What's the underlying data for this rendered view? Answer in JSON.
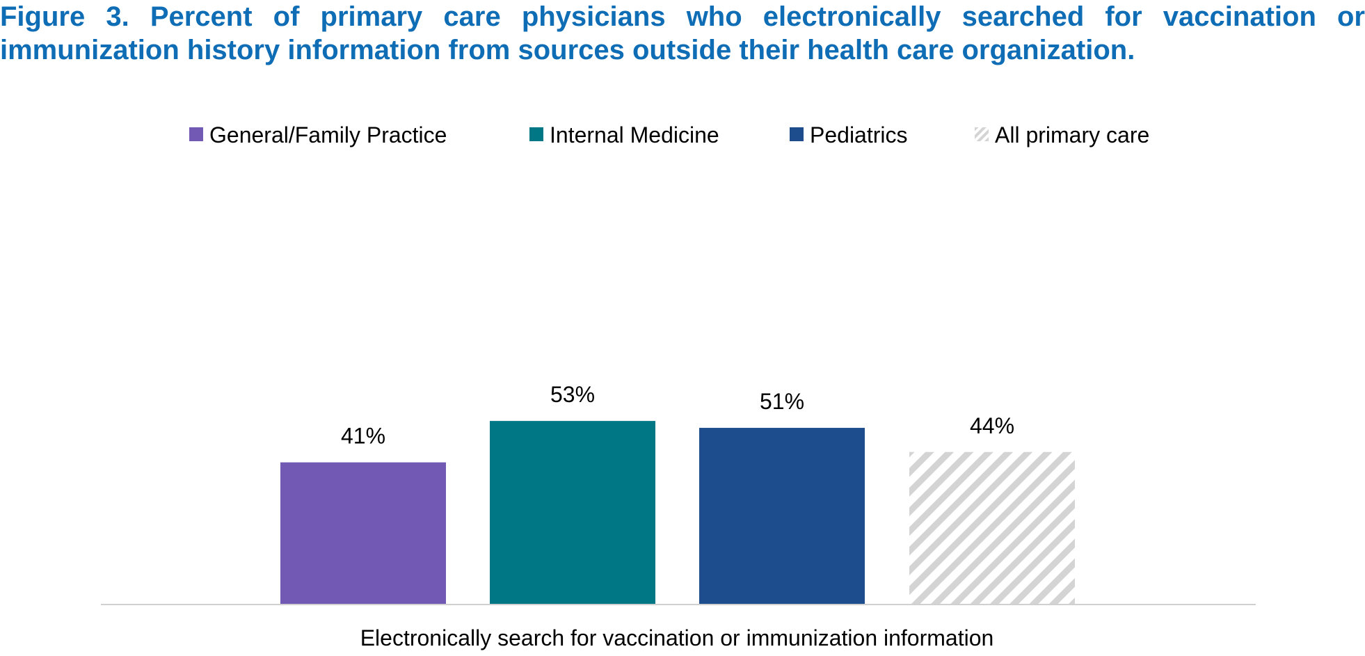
{
  "figure": {
    "title": "Figure 3. Percent of primary care physicians who electronically searched for vaccination or immunization history information from sources outside their health care organization."
  },
  "chart_data": {
    "type": "bar",
    "title": "Figure 3. Percent of primary care physicians who electronically searched for vaccination or immunization history information from sources outside their health care organization.",
    "categories": [
      "Electronically search for vaccination or immunization information"
    ],
    "xlabel": "",
    "ylabel": "",
    "ylim": [
      0,
      100
    ],
    "grid": false,
    "legend_position": "top",
    "value_format": "percent",
    "series": [
      {
        "name": "General/Family Practice",
        "values": [
          41
        ],
        "color": "#7259b4",
        "pattern": "solid"
      },
      {
        "name": "Internal Medicine",
        "values": [
          53
        ],
        "color": "#007785",
        "pattern": "solid"
      },
      {
        "name": "Pediatrics",
        "values": [
          51
        ],
        "color": "#1d4d8d",
        "pattern": "solid"
      },
      {
        "name": "All primary care",
        "values": [
          44
        ],
        "color": "#d4d4d4",
        "pattern": "diagonal-stripes"
      }
    ],
    "data_labels": [
      "41%",
      "53%",
      "51%",
      "44%"
    ]
  }
}
